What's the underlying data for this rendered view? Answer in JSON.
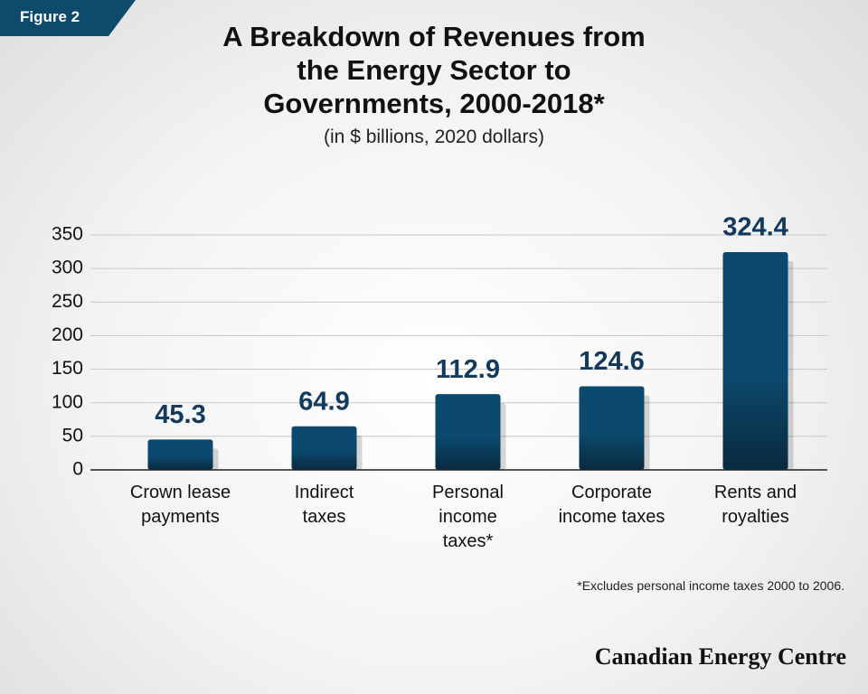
{
  "chart_data": {
    "type": "bar",
    "figure_label": "Figure 2",
    "title": "A Breakdown of Revenues from\nthe Energy Sector to\nGovernments, 2000-2018*",
    "subtitle": "(in $ billions, 2020 dollars)",
    "categories": [
      "Crown lease\npayments",
      "Indirect\ntaxes",
      "Personal\nincome\ntaxes*",
      "Corporate\nincome taxes",
      "Rents and\nroyalties"
    ],
    "values": [
      45.3,
      64.9,
      112.9,
      124.6,
      324.4
    ],
    "color": "#0b4a6e",
    "ylim": [
      0,
      350
    ],
    "yticks": [
      0,
      50,
      100,
      150,
      200,
      250,
      300,
      350
    ],
    "grid": true,
    "note": "*Excludes personal income taxes 2000 to 2006.",
    "source": "Canadian Energy Centre"
  }
}
